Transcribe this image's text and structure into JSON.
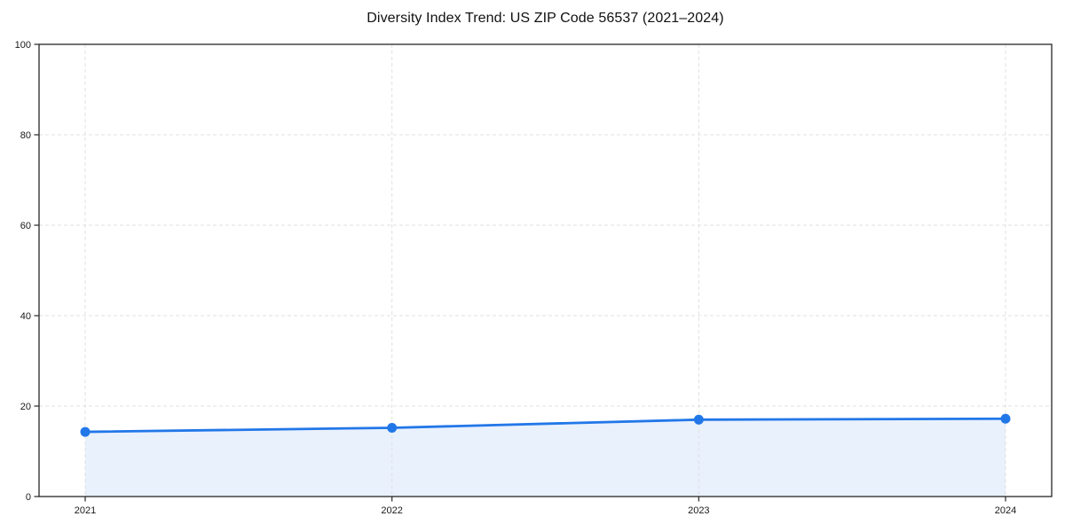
{
  "chart_data": {
    "type": "area",
    "title": "Diversity Index Trend: US ZIP Code 56537 (2021–2024)",
    "categories": [
      "2021",
      "2022",
      "2023",
      "2024"
    ],
    "series": [
      {
        "name": "Diversity Index",
        "values": [
          14.3,
          15.2,
          17.0,
          17.2
        ]
      }
    ],
    "xlabel": "",
    "ylabel": "",
    "ylim": [
      0,
      100
    ],
    "yticks": [
      0,
      20,
      40,
      60,
      80,
      100
    ],
    "grid": {
      "style": "dashed",
      "horizontal": true,
      "vertical": true
    },
    "legend": "none",
    "colors": {
      "accent": "#2277e8",
      "area_fill": "#e9f1fd",
      "grid": "#e0e0e0",
      "spine": "#262626",
      "text": "#1a1a1a",
      "background": "#ffffff"
    }
  }
}
